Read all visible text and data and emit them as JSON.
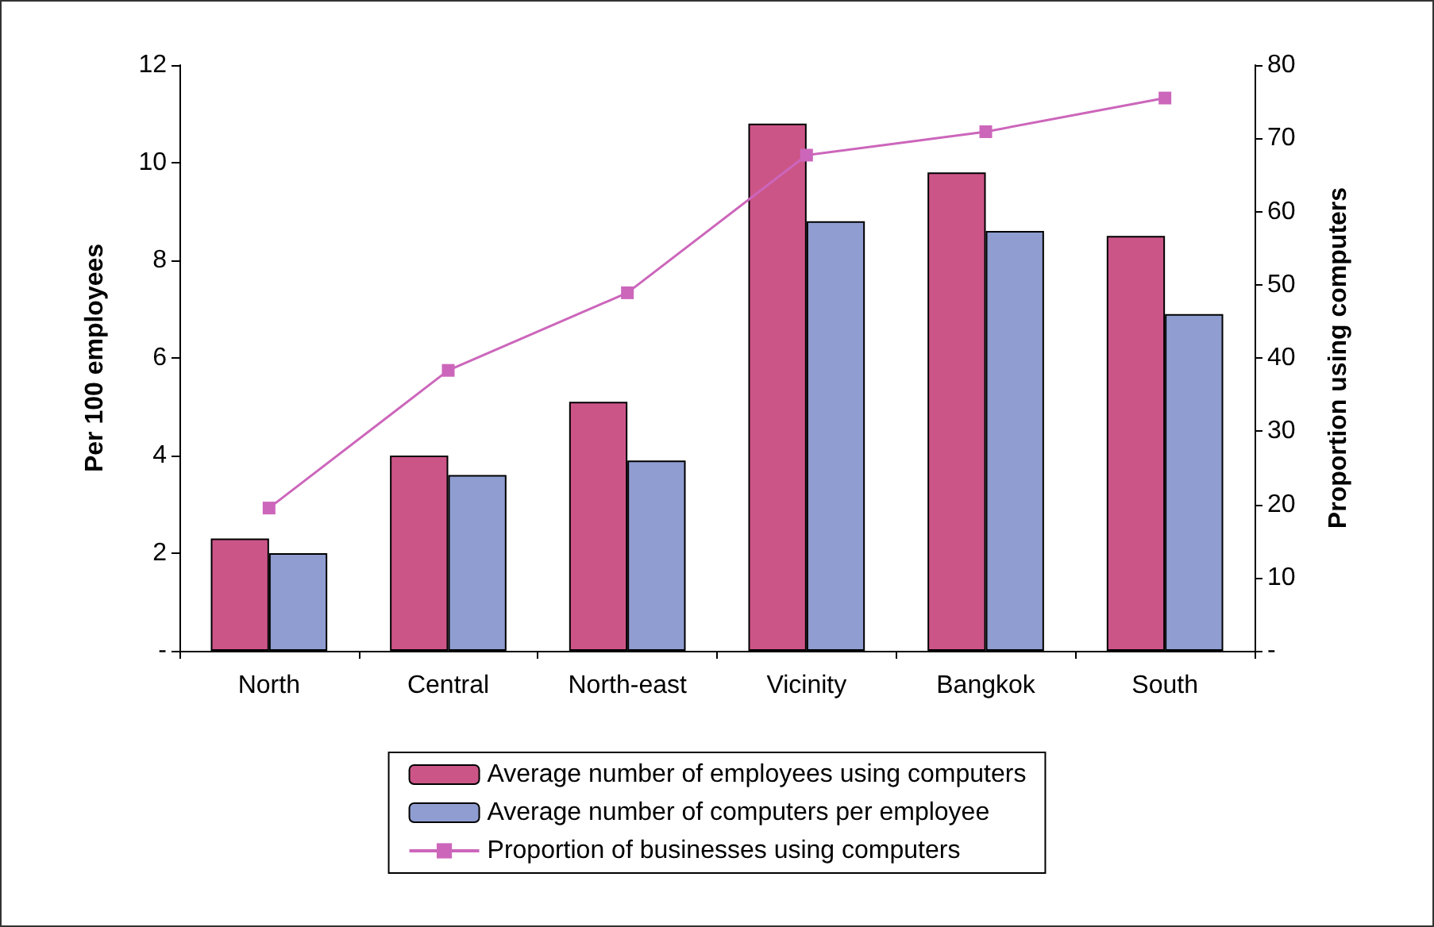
{
  "chart_data": {
    "type": "bar",
    "ylabel": "Per 100 employees",
    "y2label": "Proportion using computers",
    "categories": [
      "North",
      "Central",
      "North-east",
      "Vicinity",
      "Bangkok",
      "South"
    ],
    "series": [
      {
        "name": "Average number of employees using computers",
        "color": "#cc5588",
        "values": [
          2.3,
          4.0,
          5.1,
          10.8,
          9.8,
          8.5
        ]
      },
      {
        "name": "Average number of computers per employee",
        "color": "#8f9dd0",
        "values": [
          2.0,
          3.6,
          3.9,
          8.8,
          8.6,
          6.9
        ]
      },
      {
        "name": "Proportion of businesses using computers",
        "type": "line",
        "axis": "y2",
        "color": "#cc66bb",
        "marker": "square",
        "values": [
          19.5,
          38.3,
          48.9,
          67.7,
          70.9,
          75.5
        ]
      }
    ],
    "ylim": [
      0,
      12
    ],
    "yticks": [
      {
        "value": 0,
        "label": "-"
      },
      2,
      4,
      6,
      8,
      10,
      12
    ],
    "y2lim": [
      0,
      80
    ],
    "y2ticks": [
      {
        "value": 0,
        "label": "-"
      },
      10,
      20,
      30,
      40,
      50,
      60,
      70,
      80
    ],
    "grid": false,
    "legend": "bottom"
  }
}
